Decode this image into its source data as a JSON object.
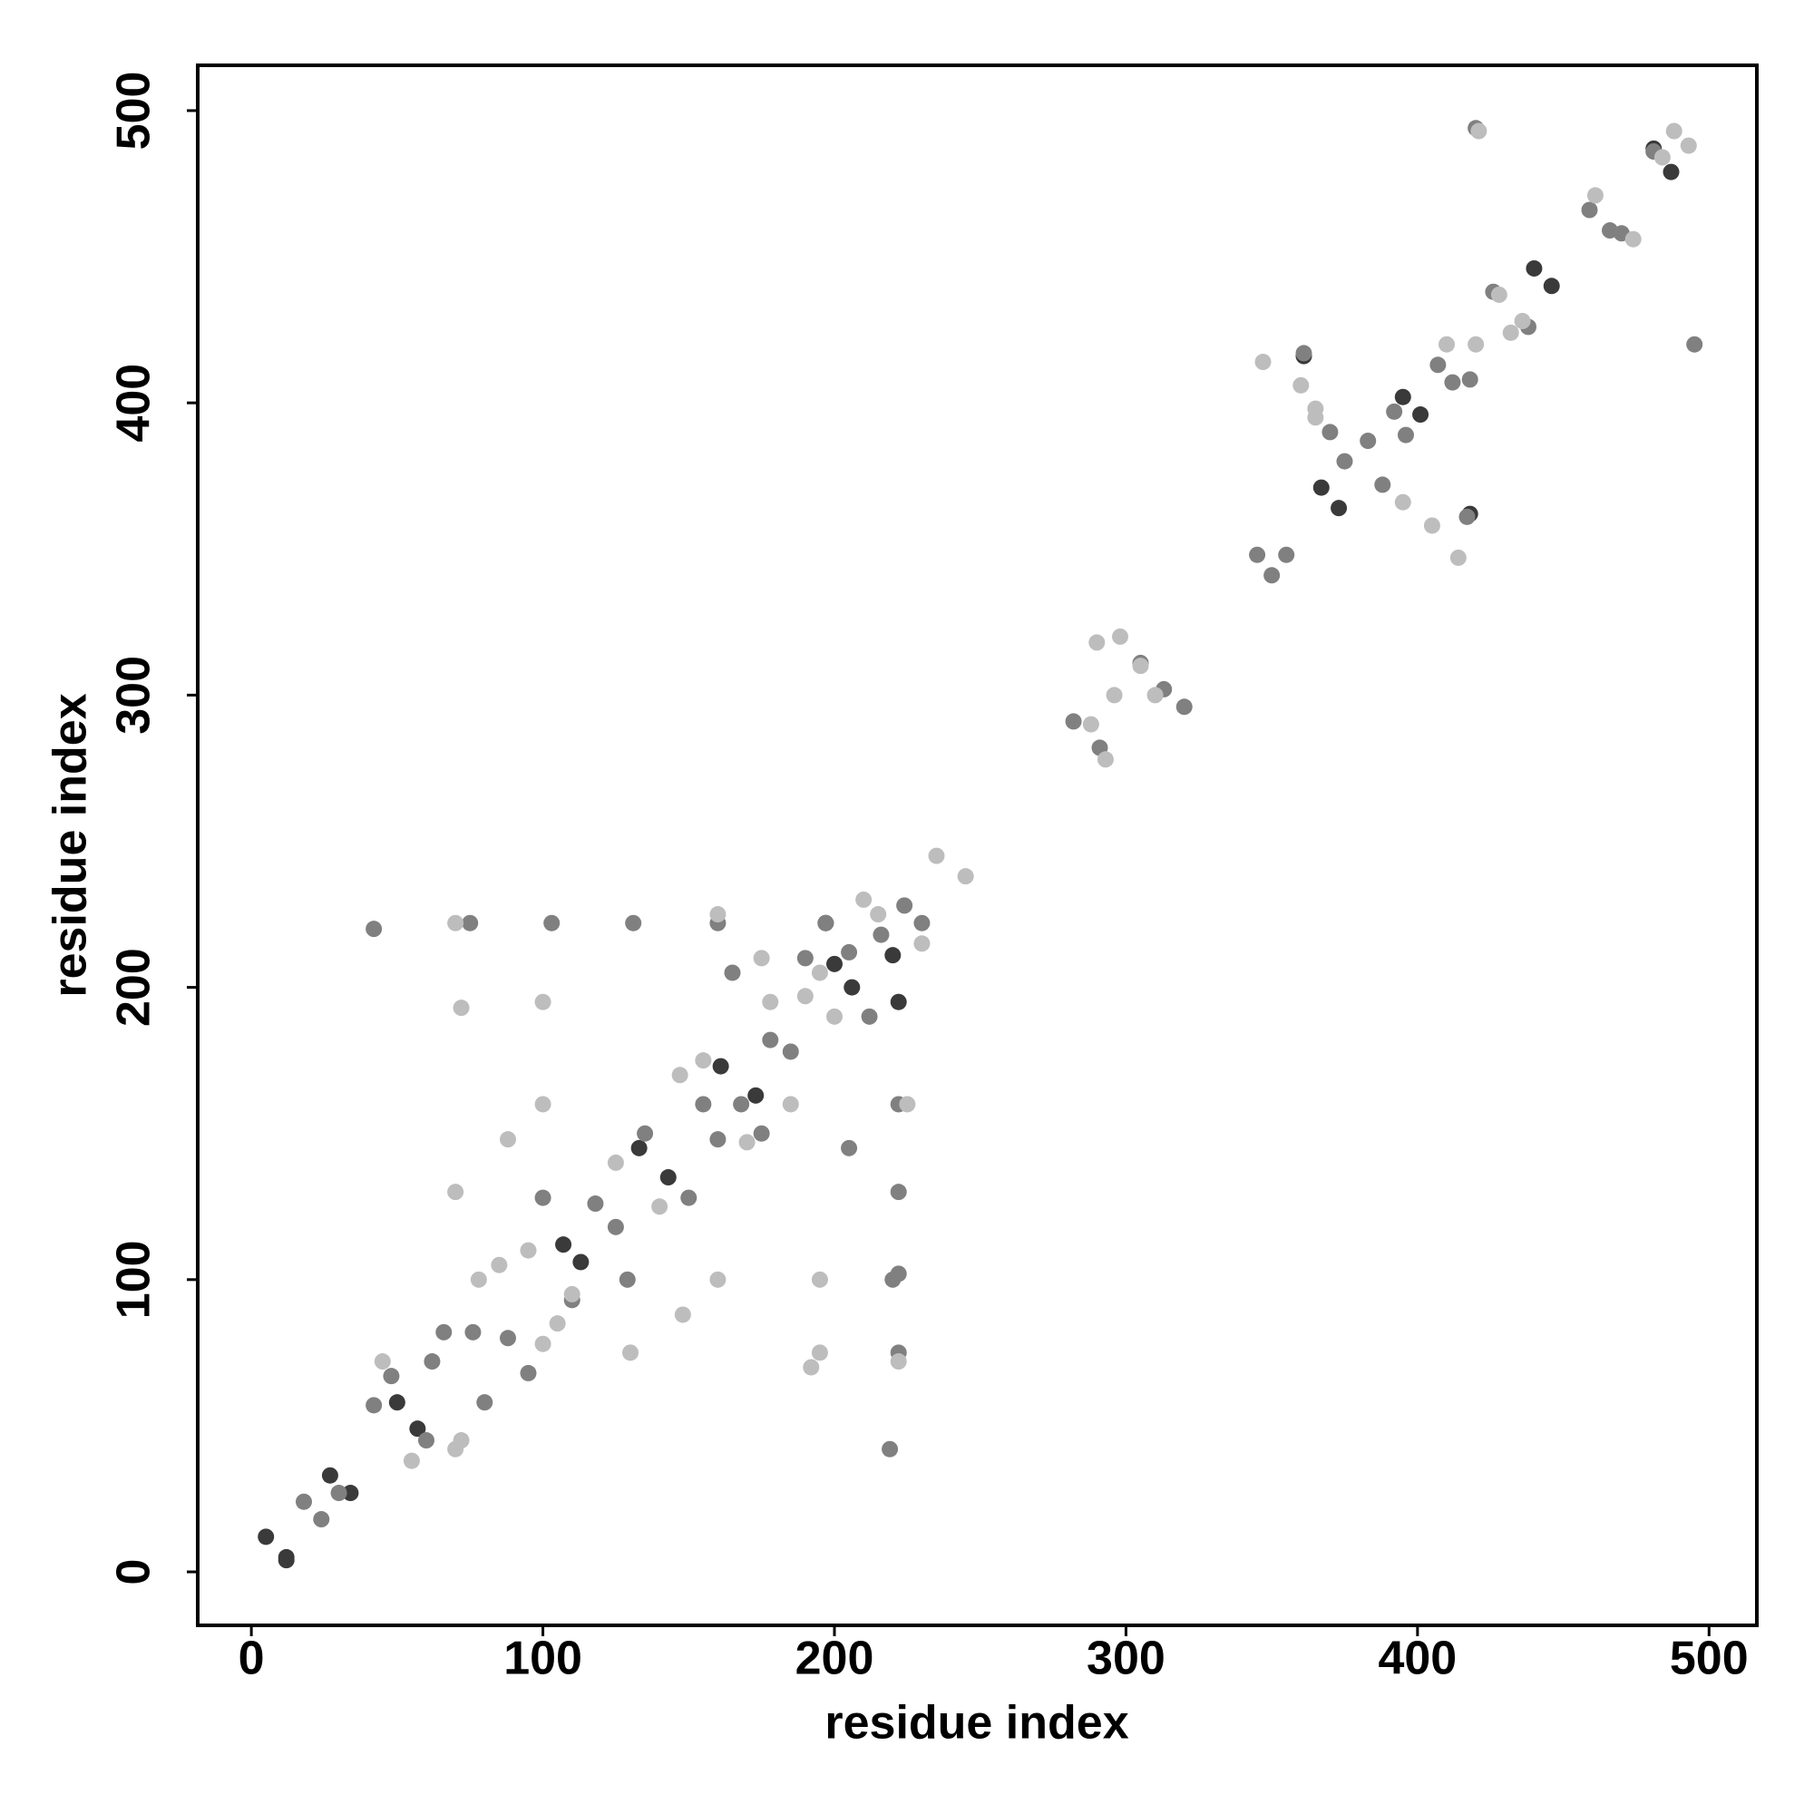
{
  "chart_data": {
    "type": "scatter",
    "xlabel": "residue index",
    "ylabel": "residue index",
    "xlim": [
      -18.4,
      516.4
    ],
    "ylim": [
      -18.3,
      515.5
    ],
    "xticks": [
      0,
      100,
      200,
      300,
      400,
      500
    ],
    "yticks": [
      0,
      100,
      200,
      300,
      400,
      500
    ],
    "grid": false,
    "series": [
      {
        "color": "#3a3a3a",
        "x": [
          5,
          12,
          12,
          27,
          34,
          57,
          50,
          107,
          113,
          161,
          173,
          197,
          200,
          222,
          220,
          206,
          143,
          133,
          395,
          401,
          440,
          446,
          418,
          361,
          367,
          373,
          487,
          481
        ],
        "values": [
          12,
          5,
          4,
          33,
          27,
          49,
          58,
          112,
          106,
          173,
          163,
          222,
          208,
          195,
          211,
          200,
          135,
          145,
          402,
          396,
          446,
          440,
          362,
          416,
          371,
          364,
          479,
          487
        ]
      },
      {
        "color": "#808080",
        "x": [
          18,
          24,
          30,
          42,
          75,
          103,
          131,
          160,
          219,
          222,
          222,
          222,
          222,
          197,
          230,
          220,
          42,
          48,
          60,
          62,
          66,
          76,
          80,
          88,
          95,
          100,
          110,
          118,
          125,
          129,
          135,
          150,
          155,
          160,
          168,
          175,
          178,
          185,
          190,
          205,
          212,
          216,
          224,
          165,
          205,
          282,
          291,
          305,
          313,
          320,
          345,
          350,
          355,
          361,
          417,
          370,
          375,
          383,
          388,
          392,
          396,
          407,
          412,
          418,
          426,
          438,
          459,
          466,
          420,
          495,
          481,
          470
        ],
        "values": [
          24,
          18,
          27,
          220,
          222,
          222,
          222,
          222,
          42,
          75,
          102,
          130,
          160,
          222,
          222,
          100,
          57,
          67,
          45,
          72,
          82,
          82,
          58,
          80,
          68,
          128,
          93,
          126,
          118,
          100,
          150,
          128,
          160,
          148,
          160,
          150,
          182,
          178,
          210,
          212,
          190,
          218,
          228,
          205,
          145,
          291,
          282,
          311,
          302,
          296,
          348,
          341,
          348,
          417,
          361,
          390,
          380,
          387,
          372,
          397,
          389,
          413,
          407,
          408,
          438,
          426,
          466,
          459,
          494,
          420,
          486,
          458
        ]
      },
      {
        "color": "#bdbdbd",
        "x": [
          70,
          100,
          72,
          130,
          195,
          195,
          222,
          192,
          70,
          100,
          160,
          235,
          245,
          230,
          210,
          215,
          195,
          200,
          190,
          148,
          88,
          45,
          55,
          72,
          70,
          78,
          100,
          85,
          105,
          95,
          110,
          140,
          125,
          147,
          170,
          155,
          178,
          185,
          175,
          160,
          225,
          290,
          298,
          305,
          296,
          310,
          293,
          288,
          414,
          347,
          365,
          395,
          360,
          405,
          365,
          428,
          436,
          432,
          474,
          461,
          488,
          493,
          421,
          484,
          420,
          410
        ],
        "values": [
          222,
          195,
          193,
          75,
          100,
          75,
          72,
          70,
          130,
          160,
          100,
          245,
          238,
          215,
          230,
          225,
          205,
          190,
          197,
          88,
          148,
          72,
          38,
          45,
          42,
          100,
          78,
          105,
          85,
          110,
          95,
          125,
          140,
          170,
          147,
          175,
          195,
          160,
          210,
          225,
          160,
          318,
          320,
          310,
          300,
          300,
          278,
          290,
          347,
          414,
          395,
          366,
          406,
          358,
          398,
          437,
          428,
          424,
          456,
          471,
          493,
          488,
          493,
          484,
          420,
          420
        ]
      }
    ]
  }
}
